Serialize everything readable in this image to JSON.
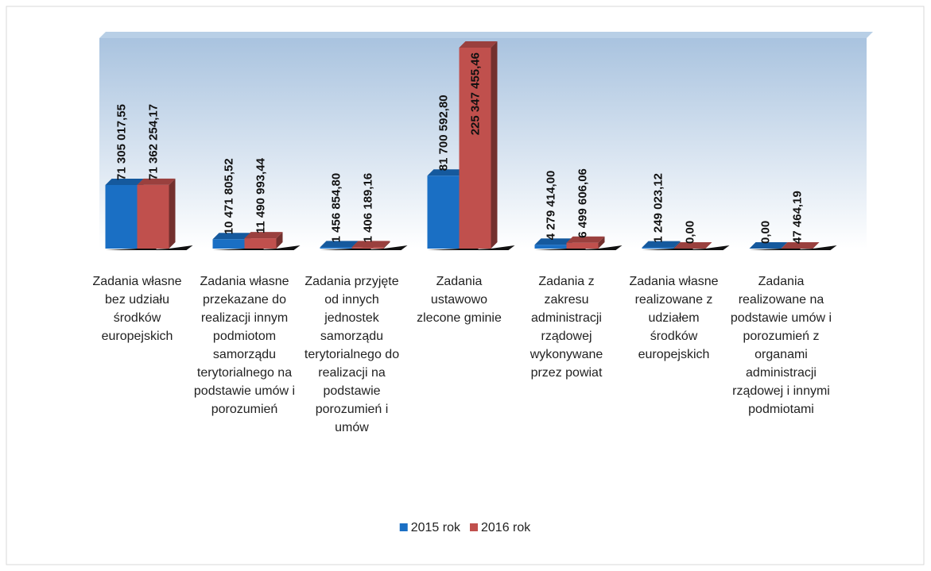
{
  "chart_data": {
    "type": "bar",
    "categories": [
      "Zadania własne bez udziału środków europejskich",
      "Zadania własne przekazane do realizacji innym podmiotom samorządu terytorialnego na podstawie umów i porozumień",
      "Zadania przyjęte od innych jednostek samorządu terytorialnego do realizacji na podstawie porozumień i umów",
      "Zadania ustawowo zlecone gminie",
      "Zadania z zakresu administracji rządowej wykonywane przez powiat",
      "Zadania własne realizowane z udziałem środków europejskich",
      "Zadania realizowane na podstawie umów i porozumień z organami administracji rządowej i innymi podmiotami"
    ],
    "series": [
      {
        "name": "2015 rok",
        "color": "#1a6fc4",
        "values": [
          71305017.55,
          10471805.52,
          1456854.8,
          81700592.8,
          4279414.0,
          1249023.12,
          0.0
        ],
        "value_labels": [
          "71 305 017,55",
          "10 471 805,52",
          "1 456 854,80",
          "81 700 592,80",
          "4 279 414,00",
          "1 249 023,12",
          "0,00"
        ]
      },
      {
        "name": "2016 rok",
        "color": "#c0504d",
        "values": [
          71362254.17,
          11490993.44,
          1406189.16,
          225347455.46,
          6499606.06,
          0.0,
          47464.19
        ],
        "value_labels": [
          "71 362 254,17",
          "11 490 993,44",
          "1 406 189,16",
          "225 347 455,46",
          "6 499 606,06",
          "0,00",
          "47 464,19"
        ]
      }
    ],
    "legend": "bottom"
  }
}
